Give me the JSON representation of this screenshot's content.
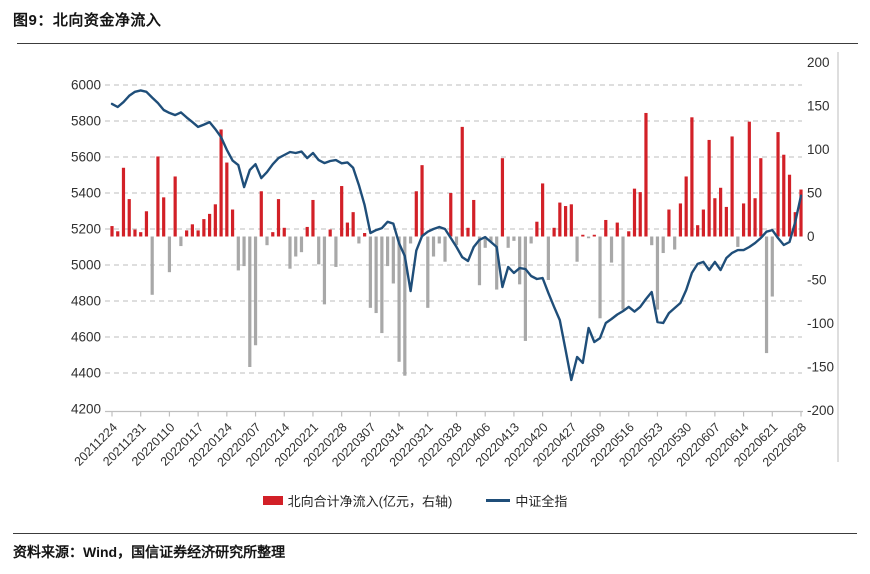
{
  "figure": {
    "title": "图9：北向资金净流入",
    "source": "资料来源：Wind，国信证券经济研究所整理"
  },
  "colors": {
    "bar_positive": "#d22027",
    "bar_negative": "#a8a8a8",
    "line": "#1f4e79",
    "grid": "#c9c9c9",
    "axis": "#bfbfbf",
    "axis_text": "#303030",
    "rule": "#3c3c3c"
  },
  "chart_data": {
    "type": "bar+line combo",
    "title": "图9：北向资金净流入",
    "grid": "horizontal dashed",
    "legend_position": "bottom center",
    "points_per_tick": 5,
    "x_tick_labels": [
      "20211224",
      "20211231",
      "20220110",
      "20220117",
      "20220124",
      "20220207",
      "20220214",
      "20220221",
      "20220228",
      "20220307",
      "20220314",
      "20220321",
      "20220328",
      "20220406",
      "20220413",
      "20220420",
      "20220427",
      "20220509",
      "20220516",
      "20220523",
      "20220530",
      "20220607",
      "20220614",
      "20220621",
      "20220628"
    ],
    "left_axis": {
      "min": 4200,
      "max": 6000,
      "step": 200,
      "ticks": [
        6000,
        5800,
        5600,
        5400,
        5200,
        5000,
        4800,
        4600,
        4400,
        4200
      ]
    },
    "right_axis": {
      "min": -200,
      "max": 200,
      "step": 50,
      "ticks": [
        200,
        150,
        100,
        50,
        0,
        -50,
        -100,
        -150,
        -200
      ]
    },
    "series": [
      {
        "name": "北向合计净流入(亿元，右轴)",
        "type": "bar",
        "axis": "right",
        "color_positive": "#d22027",
        "color_negative": "#a8a8a8",
        "values": [
          12,
          6,
          79,
          43,
          8,
          5,
          29,
          -67,
          92,
          45,
          -41,
          69,
          -11,
          7,
          14,
          7,
          20,
          26,
          37,
          123,
          85,
          31,
          -39,
          -34,
          -150,
          -125,
          52,
          -10,
          5,
          43,
          10,
          -37,
          -23,
          -18,
          11,
          42,
          -32,
          -78,
          8,
          -35,
          58,
          16,
          28,
          -8,
          4,
          -82,
          -88,
          -111,
          -34,
          -54,
          -144,
          -160,
          -8,
          52,
          82,
          -82,
          -23,
          -8,
          -29,
          50,
          -10,
          126,
          10,
          42,
          -56,
          -13,
          -6,
          -61,
          90,
          -13,
          -5,
          -55,
          -120,
          -8,
          17,
          61,
          -50,
          10,
          39,
          35,
          37,
          -29,
          2,
          -2,
          2,
          -94,
          19,
          -30,
          16,
          -84,
          6,
          55,
          51,
          142,
          -10,
          -84,
          -19,
          31,
          -15,
          38,
          69,
          137,
          13,
          31,
          111,
          44,
          56,
          34,
          115,
          -12,
          38,
          132,
          44,
          90,
          -134,
          -69,
          120,
          94,
          71,
          28,
          54
        ]
      },
      {
        "name": "中证全指",
        "type": "line",
        "axis": "left",
        "color": "#1f4e79",
        "values": [
          5895,
          5878,
          5905,
          5940,
          5962,
          5970,
          5962,
          5930,
          5900,
          5861,
          5845,
          5833,
          5848,
          5820,
          5794,
          5767,
          5780,
          5794,
          5755,
          5710,
          5640,
          5580,
          5555,
          5433,
          5528,
          5560,
          5483,
          5516,
          5560,
          5594,
          5611,
          5628,
          5622,
          5630,
          5594,
          5622,
          5583,
          5566,
          5578,
          5583,
          5565,
          5570,
          5540,
          5444,
          5333,
          5178,
          5194,
          5205,
          5240,
          5230,
          5120,
          5050,
          4855,
          5080,
          5160,
          5185,
          5200,
          5211,
          5200,
          5150,
          5100,
          5044,
          5022,
          5100,
          5140,
          5155,
          5128,
          5100,
          4878,
          4989,
          4956,
          4983,
          4978,
          4939,
          4922,
          4928,
          4844,
          4767,
          4694,
          4528,
          4361,
          4489,
          4456,
          4650,
          4572,
          4594,
          4678,
          4700,
          4725,
          4744,
          4767,
          4741,
          4767,
          4811,
          4850,
          4683,
          4678,
          4733,
          4761,
          4789,
          4861,
          4956,
          5006,
          5017,
          4972,
          5017,
          4972,
          5039,
          5067,
          5083,
          5083,
          5100,
          5122,
          5150,
          5185,
          5194,
          5150,
          5111,
          5128,
          5240,
          5385
        ]
      }
    ]
  }
}
